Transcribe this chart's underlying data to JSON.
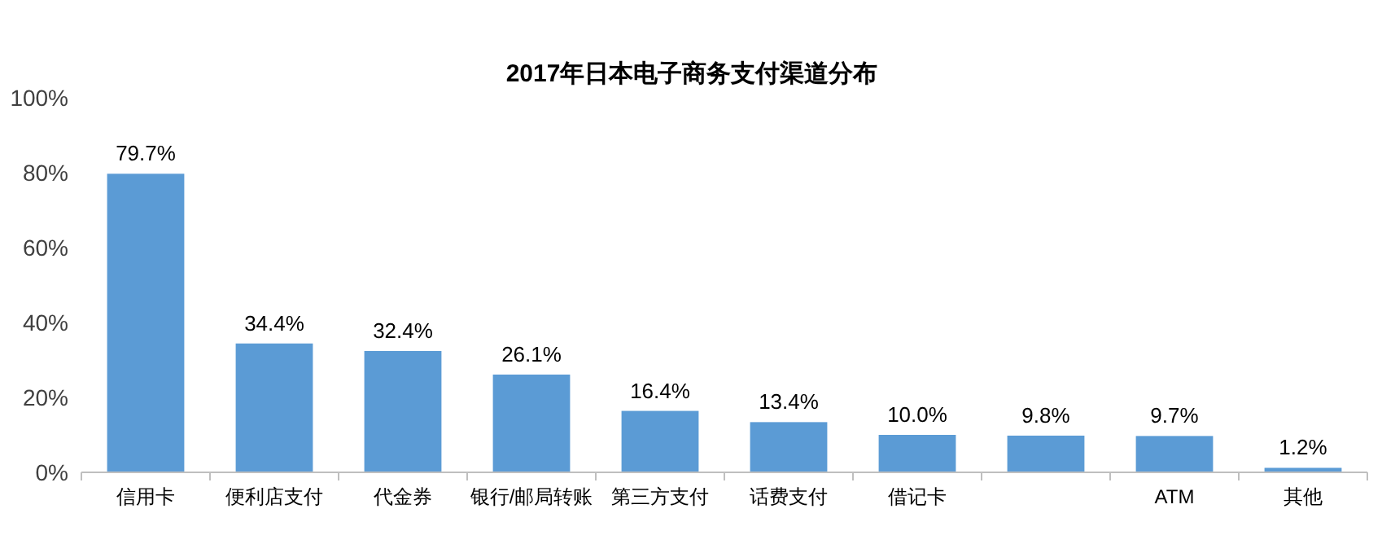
{
  "chart_data": {
    "type": "bar",
    "title": "2017年日本电子商务支付渠道分布",
    "categories": [
      "信用卡",
      "便利店支付",
      "代金券",
      "银行/邮局转账",
      "第三方支付",
      "话费支付",
      "借记卡",
      null,
      "ATM",
      "其他"
    ],
    "values": [
      79.7,
      34.4,
      32.4,
      26.1,
      16.4,
      13.4,
      10.0,
      9.8,
      9.7,
      1.2
    ],
    "value_labels": [
      "79.7%",
      "34.4%",
      "32.4%",
      "26.1%",
      "16.4%",
      "13.4%",
      "10.0%",
      "9.8%",
      "9.7%",
      "1.2%"
    ],
    "color": "#5b9bd5",
    "ylim": [
      0,
      100
    ],
    "yticks": [
      {
        "value": 0,
        "label": "0%"
      },
      {
        "value": 20,
        "label": "20%"
      },
      {
        "value": 40,
        "label": "40%"
      },
      {
        "value": 60,
        "label": "60%"
      },
      {
        "value": 80,
        "label": "80%"
      },
      {
        "value": 100,
        "label": "100%"
      }
    ],
    "grid": false
  }
}
